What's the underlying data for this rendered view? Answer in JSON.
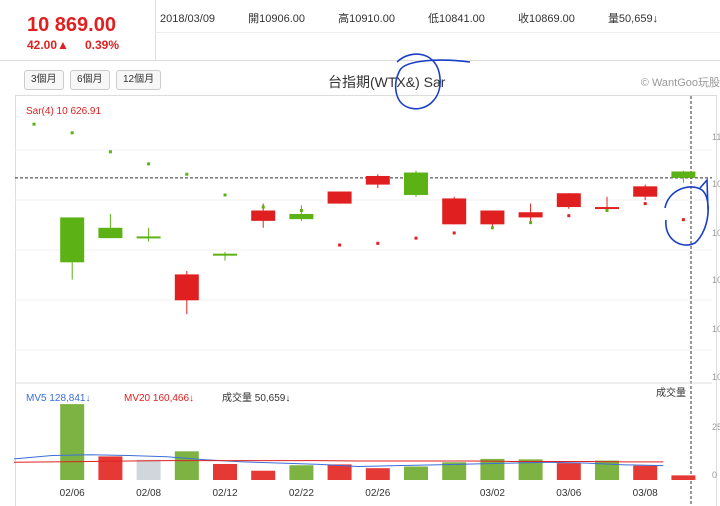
{
  "header": {
    "price": "10 869.00",
    "change": "42.00▲",
    "pct": "0.39%",
    "date": "2018/03/09",
    "open": "開10906.00",
    "high": "高10910.00",
    "low": "低10841.00",
    "close": "收10869.00",
    "vol": "量50,659↓"
  },
  "toolbar": {
    "btn3": "3個月",
    "btn6": "6個月",
    "btn12": "12個月"
  },
  "title": "台指期(WTX&) Sar",
  "brand": "© WantGoo玩股",
  "colors": {
    "up": "#e02020",
    "down": "#5cb214",
    "vol_up": "#e53935",
    "vol_down": "#7cb342",
    "vol_neutral": "#cfd6dc"
  },
  "chart_data": {
    "type": "candlestick",
    "sar_label": "Sar(4) 10 626.91",
    "vol_legend": {
      "mv5": "MV5 128,841↓",
      "mv20": "MV20 160,466↓",
      "vol": "成交量 50,659↓"
    },
    "vol_axis_label": "成交量",
    "x_labels": [
      "02/06",
      "02/08",
      "02/12",
      "02/22",
      "02/26",
      "03/02",
      "03/06",
      "03/08"
    ],
    "x_label_idx": [
      1,
      3,
      5,
      7,
      9,
      12,
      14,
      16
    ],
    "y_ticks": [
      "11",
      "10",
      "10",
      "10",
      "10",
      "10"
    ],
    "vol_ticks": [
      "25",
      "0"
    ],
    "ylim": [
      9710,
      11320
    ],
    "last_close": 10869,
    "candles": [
      {
        "o": null,
        "h": null,
        "l": null,
        "c": null
      },
      {
        "o": 10640,
        "h": 10640,
        "l": 10280,
        "c": 10380
      },
      {
        "o": 10580,
        "h": 10660,
        "l": 10520,
        "c": 10520
      },
      {
        "o": 10530,
        "h": 10580,
        "l": 10500,
        "c": 10520
      },
      {
        "o": 10160,
        "h": 10330,
        "l": 10080,
        "c": 10310
      },
      {
        "o": 10430,
        "h": 10440,
        "l": 10390,
        "c": 10420
      },
      {
        "o": 10620,
        "h": 10720,
        "l": 10580,
        "c": 10680
      },
      {
        "o": 10660,
        "h": 10710,
        "l": 10620,
        "c": 10630
      },
      {
        "o": 10720,
        "h": 10780,
        "l": 10720,
        "c": 10790
      },
      {
        "o": 10830,
        "h": 10890,
        "l": 10810,
        "c": 10880
      },
      {
        "o": 10900,
        "h": 10910,
        "l": 10760,
        "c": 10770
      },
      {
        "o": 10600,
        "h": 10760,
        "l": 10600,
        "c": 10750
      },
      {
        "o": 10600,
        "h": 10680,
        "l": 10580,
        "c": 10680
      },
      {
        "o": 10640,
        "h": 10720,
        "l": 10610,
        "c": 10670
      },
      {
        "o": 10700,
        "h": 10780,
        "l": 10690,
        "c": 10780
      },
      {
        "o": 10700,
        "h": 10760,
        "l": 10680,
        "c": 10700
      },
      {
        "o": 10760,
        "h": 10830,
        "l": 10740,
        "c": 10820
      },
      {
        "o": 10906,
        "h": 10910,
        "l": 10841,
        "c": 10869
      }
    ],
    "sar": [
      11180,
      11130,
      11020,
      10950,
      10890,
      10770,
      10700,
      10680,
      10480,
      10490,
      10520,
      10550,
      10580,
      10610,
      10650,
      10680,
      10720,
      10627
    ],
    "volume": [
      {
        "v": 180,
        "c": "vol_down"
      },
      {
        "v": 56,
        "c": "vol_up"
      },
      {
        "v": 48,
        "c": "vol_neutral"
      },
      {
        "v": 68,
        "c": "vol_down"
      },
      {
        "v": 38,
        "c": "vol_up"
      },
      {
        "v": 22,
        "c": "vol_up"
      },
      {
        "v": 35,
        "c": "vol_down"
      },
      {
        "v": 37,
        "c": "vol_up"
      },
      {
        "v": 28,
        "c": "vol_up"
      },
      {
        "v": 32,
        "c": "vol_down"
      },
      {
        "v": 42,
        "c": "vol_down"
      },
      {
        "v": 50,
        "c": "vol_down"
      },
      {
        "v": 49,
        "c": "vol_down"
      },
      {
        "v": 40,
        "c": "vol_up"
      },
      {
        "v": 46,
        "c": "vol_down"
      },
      {
        "v": 34,
        "c": "vol_up"
      },
      {
        "v": 11,
        "c": "vol_up"
      }
    ],
    "mv5": [
      50,
      58,
      60,
      58,
      55,
      48,
      43,
      40,
      37,
      32,
      34,
      36,
      38,
      40,
      42,
      40,
      36,
      34
    ],
    "mv20": [
      42,
      43,
      44,
      45,
      46,
      46,
      46,
      46,
      46,
      45,
      45,
      45,
      45,
      44,
      44,
      44,
      43,
      43
    ]
  }
}
